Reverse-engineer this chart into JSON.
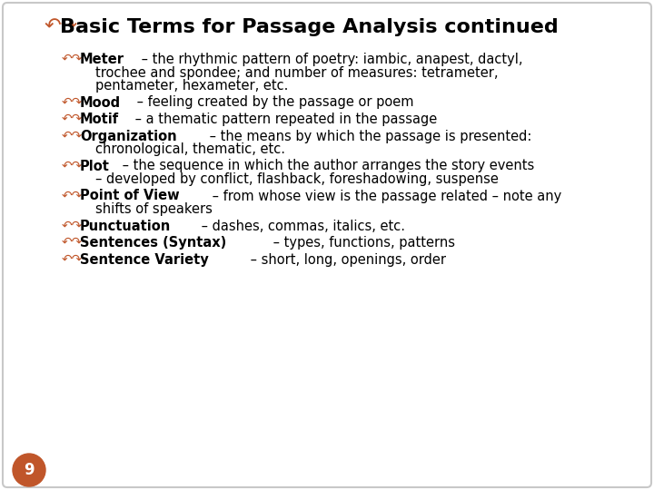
{
  "background_color": "#ffffff",
  "border_color": "#c8c8c8",
  "title": "Basic Terms for Passage Analysis continued",
  "title_fontsize": 16,
  "title_color": "#000000",
  "bullet_color": "#c0562a",
  "text_color": "#000000",
  "text_fontsize": 10.5,
  "page_number": "9",
  "page_bg": "#c0562a",
  "items": [
    {
      "bold_part": "Meter",
      "rest": " – the rhythmic pattern of poetry: iambic, anapest, dactyl,",
      "extra_lines": [
        "trochee and spondee; and number of measures: tetrameter,",
        "pentameter, hexameter, etc."
      ]
    },
    {
      "bold_part": "Mood",
      "rest": " – feeling created by the passage or poem",
      "extra_lines": []
    },
    {
      "bold_part": "Motif",
      "rest": " – a thematic pattern repeated in the passage",
      "extra_lines": []
    },
    {
      "bold_part": "Organization",
      "rest": " – the means by which the passage is presented:",
      "extra_lines": [
        "chronological, thematic, etc."
      ]
    },
    {
      "bold_part": "Plot",
      "rest": " – the sequence in which the author arranges the story events",
      "extra_lines": [
        "– developed by conflict, flashback, foreshadowing, suspense"
      ]
    },
    {
      "bold_part": "Point of View",
      "rest": " – from whose view is the passage related – note any",
      "extra_lines": [
        "shifts of speakers"
      ]
    },
    {
      "bold_part": "Punctuation",
      "rest": " – dashes, commas, italics, etc.",
      "extra_lines": []
    },
    {
      "bold_part": "Sentences (Syntax)",
      "rest": " – types, functions, patterns",
      "extra_lines": []
    },
    {
      "bold_part": "Sentence Variety",
      "rest": " – short, long, openings, order",
      "extra_lines": []
    }
  ]
}
